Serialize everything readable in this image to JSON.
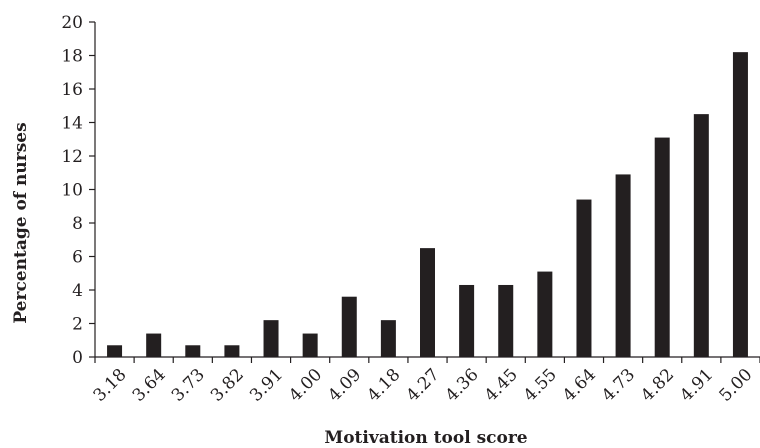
{
  "chart_data": {
    "type": "bar",
    "title": "",
    "xlabel": "Motivation tool score",
    "ylabel": "Percentage of nurses",
    "categories": [
      "3.18",
      "3.64",
      "3.73",
      "3.82",
      "3.91",
      "4.00",
      "4.09",
      "4.18",
      "4.27",
      "4.36",
      "4.45",
      "4.55",
      "4.64",
      "4.73",
      "4.82",
      "4.91",
      "5.00"
    ],
    "values": [
      0.7,
      1.4,
      0.7,
      0.7,
      2.2,
      1.4,
      3.6,
      2.2,
      6.5,
      4.3,
      4.3,
      5.1,
      9.4,
      10.9,
      13.1,
      14.5,
      18.2
    ],
    "ylim": [
      0,
      20
    ],
    "yticks": [
      "0",
      "2",
      "4",
      "6",
      "8",
      "10",
      "12",
      "14",
      "16",
      "18",
      "20"
    ],
    "grid": false,
    "legend": "none",
    "bar_color": "#231f20"
  }
}
